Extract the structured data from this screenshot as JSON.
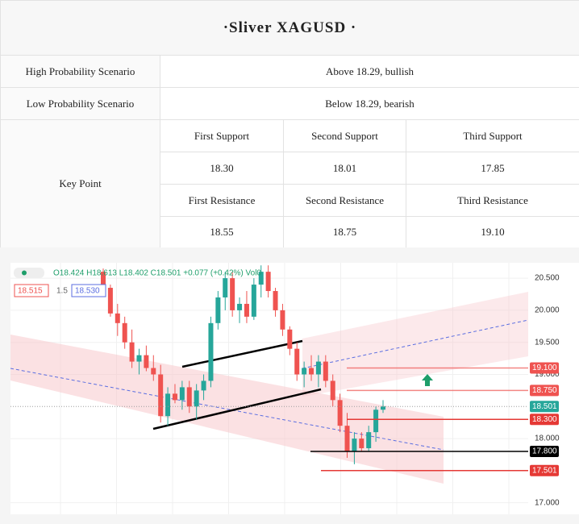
{
  "header": {
    "title": "·Sliver XAGUSD ·"
  },
  "table": {
    "rows": [
      [
        "High Probability Scenario",
        "Above 18.29, bullish"
      ],
      [
        "Low Probability Scenario",
        "Below 18.29, bearish"
      ]
    ],
    "key_point": {
      "label": "Key Point",
      "support_headers": [
        "First Support",
        "Second Support",
        "Third Support"
      ],
      "support_values": [
        "18.30",
        "18.01",
        "17.85"
      ],
      "resistance_headers": [
        "First Resistance",
        "Second Resistance",
        "Third Resistance"
      ],
      "resistance_values": [
        "18.55",
        "18.75",
        "19.10"
      ]
    }
  },
  "chart_data": {
    "type": "candlestick",
    "legend_text": "O18.424 H18.613 L18.402 C18.501 +0.077 (+0.42%) Vol0",
    "badges": [
      "18.515",
      "1.5",
      "18.530"
    ],
    "ylim": [
      16.82,
      20.74
    ],
    "yticks": [
      {
        "value": 20.5,
        "label": "20.500"
      },
      {
        "value": 20,
        "label": "20.000"
      },
      {
        "value": 19.5,
        "label": "19.500"
      },
      {
        "value": 19,
        "label": "19.000"
      },
      {
        "value": 18,
        "label": "18.000"
      },
      {
        "value": 17,
        "label": "17.000"
      }
    ],
    "up_color": "#26a69a",
    "down_color": "#ef5350",
    "open": [
      20.6,
      20.35,
      19.95,
      19.8,
      19.5,
      19.2,
      19.3,
      19.1,
      19.0,
      18.35,
      18.7,
      18.6,
      18.8,
      18.5,
      18.75,
      18.9,
      19.8,
      20.2,
      20.5,
      20.0,
      20.1,
      19.9,
      20.4,
      20.6,
      20.3,
      20.0,
      19.7,
      19.4,
      19.0,
      19.1,
      19.0,
      19.2,
      18.9,
      18.6,
      18.2,
      17.8,
      18.0,
      17.85,
      18.1,
      18.45
    ],
    "high": [
      20.65,
      20.4,
      20.1,
      19.9,
      19.7,
      19.4,
      19.45,
      19.3,
      19.15,
      18.8,
      18.85,
      18.9,
      18.9,
      18.85,
      19.0,
      19.9,
      20.3,
      20.6,
      20.6,
      20.2,
      20.3,
      20.5,
      20.7,
      20.7,
      20.35,
      20.1,
      19.75,
      19.5,
      19.2,
      19.3,
      19.3,
      19.3,
      19.0,
      18.7,
      18.4,
      18.1,
      18.1,
      18.2,
      18.5,
      18.6
    ],
    "low": [
      20.3,
      19.9,
      19.6,
      19.4,
      19.1,
      19.0,
      19.05,
      18.9,
      18.25,
      18.2,
      18.55,
      18.45,
      18.4,
      18.3,
      18.6,
      18.8,
      19.7,
      20.0,
      19.9,
      19.8,
      19.8,
      19.85,
      20.2,
      20.2,
      19.9,
      19.6,
      19.3,
      18.9,
      18.8,
      18.9,
      18.8,
      18.8,
      18.5,
      18.1,
      17.7,
      17.6,
      17.8,
      17.8,
      17.95,
      18.4
    ],
    "close": [
      20.35,
      19.95,
      19.8,
      19.5,
      19.2,
      19.3,
      19.1,
      19.0,
      18.35,
      18.7,
      18.6,
      18.8,
      18.5,
      18.75,
      18.9,
      19.8,
      20.2,
      20.5,
      20.0,
      20.1,
      19.9,
      20.4,
      20.6,
      20.3,
      20.0,
      19.7,
      19.4,
      19.0,
      19.1,
      19.0,
      19.2,
      18.9,
      18.6,
      18.2,
      17.8,
      18.0,
      17.85,
      18.1,
      18.45,
      18.501
    ],
    "levels": [
      {
        "value": 19.1,
        "label": "19.100",
        "color": "#ef5350"
      },
      {
        "value": 18.75,
        "label": "18.750",
        "color": "#ef5350"
      },
      {
        "value": 18.501,
        "label": "18.501",
        "color": "#26a69a"
      },
      {
        "value": 18.3,
        "label": "18.300",
        "color": "#e53935"
      },
      {
        "value": 17.8,
        "label": "17.800",
        "color": "#000000"
      },
      {
        "value": 17.501,
        "label": "17.501",
        "color": "#e53935"
      }
    ]
  }
}
